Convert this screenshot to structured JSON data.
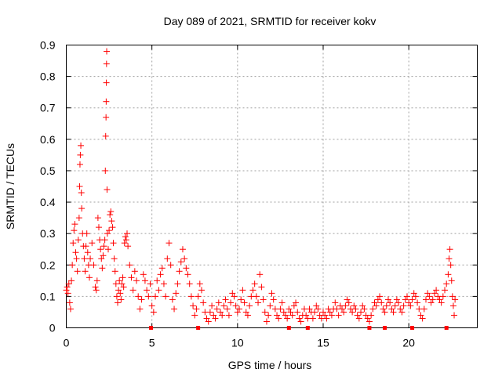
{
  "chart_data": {
    "type": "scatter",
    "title": "Day 089 of 2021, SRMTID for receiver kokv",
    "xlabel": "GPS time / hours",
    "ylabel": "SRMTID / TECUs",
    "xlim": [
      0,
      24
    ],
    "ylim": [
      0,
      0.9
    ],
    "x_ticks": [
      0,
      5,
      10,
      15,
      20
    ],
    "x_tick_labels": [
      "0",
      "5",
      "10",
      "15",
      "20"
    ],
    "y_ticks": [
      0,
      0.1,
      0.2,
      0.3,
      0.4,
      0.5,
      0.6,
      0.7,
      0.8,
      0.9
    ],
    "y_tick_labels": [
      "0",
      "0.1",
      "0.2",
      "0.3",
      "0.4",
      "0.5",
      "0.6",
      "0.7",
      "0.8",
      "0.9"
    ],
    "grid": true,
    "marker": "plus",
    "series_color": "#ff0000",
    "series": [
      {
        "name": "SRMTID",
        "points": [
          [
            0.0,
            0.12
          ],
          [
            0.05,
            0.13
          ],
          [
            0.1,
            0.11
          ],
          [
            0.15,
            0.14
          ],
          [
            0.2,
            0.08
          ],
          [
            0.25,
            0.06
          ],
          [
            0.3,
            0.15
          ],
          [
            0.35,
            0.2
          ],
          [
            0.4,
            0.27
          ],
          [
            0.45,
            0.31
          ],
          [
            0.5,
            0.33
          ],
          [
            0.55,
            0.24
          ],
          [
            0.6,
            0.22
          ],
          [
            0.65,
            0.18
          ],
          [
            0.7,
            0.28
          ],
          [
            0.75,
            0.35
          ],
          [
            0.78,
            0.45
          ],
          [
            0.8,
            0.52
          ],
          [
            0.82,
            0.55
          ],
          [
            0.85,
            0.58
          ],
          [
            0.88,
            0.43
          ],
          [
            0.9,
            0.38
          ],
          [
            0.95,
            0.3
          ],
          [
            1.0,
            0.26
          ],
          [
            1.05,
            0.22
          ],
          [
            1.1,
            0.18
          ],
          [
            1.15,
            0.26
          ],
          [
            1.2,
            0.3
          ],
          [
            1.25,
            0.24
          ],
          [
            1.3,
            0.2
          ],
          [
            1.35,
            0.16
          ],
          [
            1.4,
            0.22
          ],
          [
            1.5,
            0.27
          ],
          [
            1.6,
            0.2
          ],
          [
            1.7,
            0.13
          ],
          [
            1.75,
            0.12
          ],
          [
            1.8,
            0.15
          ],
          [
            1.85,
            0.35
          ],
          [
            1.9,
            0.32
          ],
          [
            1.95,
            0.28
          ],
          [
            2.0,
            0.25
          ],
          [
            2.05,
            0.22
          ],
          [
            2.1,
            0.19
          ],
          [
            2.15,
            0.23
          ],
          [
            2.2,
            0.26
          ],
          [
            2.25,
            0.28
          ],
          [
            2.28,
            0.5
          ],
          [
            2.3,
            0.61
          ],
          [
            2.32,
            0.67
          ],
          [
            2.33,
            0.72
          ],
          [
            2.34,
            0.78
          ],
          [
            2.35,
            0.84
          ],
          [
            2.36,
            0.88
          ],
          [
            2.38,
            0.44
          ],
          [
            2.4,
            0.3
          ],
          [
            2.45,
            0.25
          ],
          [
            2.5,
            0.31
          ],
          [
            2.55,
            0.36
          ],
          [
            2.6,
            0.37
          ],
          [
            2.65,
            0.34
          ],
          [
            2.7,
            0.32
          ],
          [
            2.75,
            0.27
          ],
          [
            2.8,
            0.22
          ],
          [
            2.85,
            0.18
          ],
          [
            2.9,
            0.14
          ],
          [
            2.95,
            0.1
          ],
          [
            3.0,
            0.08
          ],
          [
            3.05,
            0.12
          ],
          [
            3.1,
            0.15
          ],
          [
            3.15,
            0.11
          ],
          [
            3.2,
            0.09
          ],
          [
            3.25,
            0.14
          ],
          [
            3.3,
            0.16
          ],
          [
            3.35,
            0.13
          ],
          [
            3.4,
            0.27
          ],
          [
            3.45,
            0.29
          ],
          [
            3.5,
            0.28
          ],
          [
            3.55,
            0.3
          ],
          [
            3.6,
            0.26
          ],
          [
            3.7,
            0.2
          ],
          [
            3.8,
            0.16
          ],
          [
            3.9,
            0.12
          ],
          [
            4.0,
            0.18
          ],
          [
            4.1,
            0.15
          ],
          [
            4.2,
            0.1
          ],
          [
            4.3,
            0.06
          ],
          [
            4.4,
            0.09
          ],
          [
            4.5,
            0.17
          ],
          [
            4.6,
            0.15
          ],
          [
            4.7,
            0.12
          ],
          [
            4.8,
            0.1
          ],
          [
            4.9,
            0.14
          ],
          [
            5.0,
            0.07
          ],
          [
            5.1,
            0.05
          ],
          [
            5.2,
            0.1
          ],
          [
            5.3,
            0.15
          ],
          [
            5.4,
            0.12
          ],
          [
            5.5,
            0.17
          ],
          [
            5.6,
            0.19
          ],
          [
            5.7,
            0.14
          ],
          [
            5.8,
            0.1
          ],
          [
            5.9,
            0.22
          ],
          [
            6.0,
            0.27
          ],
          [
            6.1,
            0.2
          ],
          [
            6.2,
            0.09
          ],
          [
            6.3,
            0.06
          ],
          [
            6.4,
            0.11
          ],
          [
            6.5,
            0.14
          ],
          [
            6.6,
            0.18
          ],
          [
            6.7,
            0.21
          ],
          [
            6.8,
            0.25
          ],
          [
            6.9,
            0.22
          ],
          [
            7.0,
            0.19
          ],
          [
            7.1,
            0.17
          ],
          [
            7.2,
            0.14
          ],
          [
            7.3,
            0.1
          ],
          [
            7.4,
            0.07
          ],
          [
            7.5,
            0.04
          ],
          [
            7.6,
            0.06
          ],
          [
            7.7,
            0.1
          ],
          [
            7.8,
            0.14
          ],
          [
            7.9,
            0.12
          ],
          [
            8.0,
            0.08
          ],
          [
            8.1,
            0.05
          ],
          [
            8.2,
            0.03
          ],
          [
            8.3,
            0.02
          ],
          [
            8.4,
            0.05
          ],
          [
            8.5,
            0.07
          ],
          [
            8.6,
            0.04
          ],
          [
            8.7,
            0.03
          ],
          [
            8.8,
            0.06
          ],
          [
            8.9,
            0.08
          ],
          [
            9.0,
            0.05
          ],
          [
            9.1,
            0.04
          ],
          [
            9.2,
            0.07
          ],
          [
            9.3,
            0.09
          ],
          [
            9.4,
            0.06
          ],
          [
            9.5,
            0.04
          ],
          [
            9.6,
            0.08
          ],
          [
            9.7,
            0.11
          ],
          [
            9.8,
            0.1
          ],
          [
            9.9,
            0.07
          ],
          [
            10.0,
            0.05
          ],
          [
            10.1,
            0.06
          ],
          [
            10.2,
            0.09
          ],
          [
            10.3,
            0.12
          ],
          [
            10.4,
            0.08
          ],
          [
            10.5,
            0.05
          ],
          [
            10.6,
            0.04
          ],
          [
            10.7,
            0.07
          ],
          [
            10.8,
            0.1
          ],
          [
            10.9,
            0.12
          ],
          [
            11.0,
            0.14
          ],
          [
            11.1,
            0.1
          ],
          [
            11.2,
            0.08
          ],
          [
            11.3,
            0.17
          ],
          [
            11.4,
            0.13
          ],
          [
            11.5,
            0.09
          ],
          [
            11.6,
            0.05
          ],
          [
            11.7,
            0.02
          ],
          [
            11.8,
            0.04
          ],
          [
            11.9,
            0.07
          ],
          [
            12.0,
            0.11
          ],
          [
            12.1,
            0.09
          ],
          [
            12.2,
            0.06
          ],
          [
            12.3,
            0.04
          ],
          [
            12.4,
            0.03
          ],
          [
            12.5,
            0.06
          ],
          [
            12.6,
            0.08
          ],
          [
            12.7,
            0.05
          ],
          [
            12.8,
            0.04
          ],
          [
            12.9,
            0.03
          ],
          [
            13.0,
            0.06
          ],
          [
            13.1,
            0.05
          ],
          [
            13.2,
            0.04
          ],
          [
            13.3,
            0.07
          ],
          [
            13.4,
            0.08
          ],
          [
            13.5,
            0.05
          ],
          [
            13.6,
            0.03
          ],
          [
            13.7,
            0.02
          ],
          [
            13.8,
            0.04
          ],
          [
            13.9,
            0.06
          ],
          [
            14.0,
            0.04
          ],
          [
            14.1,
            0.03
          ],
          [
            14.2,
            0.06
          ],
          [
            14.3,
            0.05
          ],
          [
            14.4,
            0.03
          ],
          [
            14.5,
            0.05
          ],
          [
            14.6,
            0.07
          ],
          [
            14.7,
            0.06
          ],
          [
            14.8,
            0.04
          ],
          [
            14.9,
            0.03
          ],
          [
            15.0,
            0.05
          ],
          [
            15.1,
            0.04
          ],
          [
            15.2,
            0.03
          ],
          [
            15.3,
            0.06
          ],
          [
            15.4,
            0.05
          ],
          [
            15.5,
            0.04
          ],
          [
            15.6,
            0.06
          ],
          [
            15.7,
            0.08
          ],
          [
            15.8,
            0.06
          ],
          [
            15.9,
            0.04
          ],
          [
            16.0,
            0.07
          ],
          [
            16.1,
            0.06
          ],
          [
            16.2,
            0.05
          ],
          [
            16.3,
            0.07
          ],
          [
            16.4,
            0.09
          ],
          [
            16.5,
            0.08
          ],
          [
            16.6,
            0.06
          ],
          [
            16.7,
            0.05
          ],
          [
            16.8,
            0.07
          ],
          [
            16.9,
            0.06
          ],
          [
            17.0,
            0.04
          ],
          [
            17.1,
            0.03
          ],
          [
            17.2,
            0.05
          ],
          [
            17.3,
            0.07
          ],
          [
            17.4,
            0.06
          ],
          [
            17.5,
            0.04
          ],
          [
            17.6,
            0.03
          ],
          [
            17.7,
            0.02
          ],
          [
            17.8,
            0.04
          ],
          [
            17.9,
            0.06
          ],
          [
            18.0,
            0.08
          ],
          [
            18.1,
            0.07
          ],
          [
            18.2,
            0.09
          ],
          [
            18.3,
            0.1
          ],
          [
            18.4,
            0.08
          ],
          [
            18.5,
            0.06
          ],
          [
            18.6,
            0.05
          ],
          [
            18.7,
            0.07
          ],
          [
            18.8,
            0.09
          ],
          [
            18.9,
            0.08
          ],
          [
            19.0,
            0.06
          ],
          [
            19.1,
            0.05
          ],
          [
            19.2,
            0.07
          ],
          [
            19.3,
            0.09
          ],
          [
            19.4,
            0.08
          ],
          [
            19.5,
            0.06
          ],
          [
            19.6,
            0.05
          ],
          [
            19.7,
            0.07
          ],
          [
            19.8,
            0.09
          ],
          [
            19.9,
            0.1
          ],
          [
            20.0,
            0.08
          ],
          [
            20.1,
            0.07
          ],
          [
            20.2,
            0.09
          ],
          [
            20.3,
            0.11
          ],
          [
            20.4,
            0.1
          ],
          [
            20.5,
            0.08
          ],
          [
            20.6,
            0.06
          ],
          [
            20.7,
            0.04
          ],
          [
            20.8,
            0.03
          ],
          [
            20.9,
            0.06
          ],
          [
            21.0,
            0.09
          ],
          [
            21.1,
            0.11
          ],
          [
            21.2,
            0.1
          ],
          [
            21.3,
            0.08
          ],
          [
            21.4,
            0.09
          ],
          [
            21.5,
            0.11
          ],
          [
            21.6,
            0.12
          ],
          [
            21.7,
            0.1
          ],
          [
            21.8,
            0.09
          ],
          [
            21.9,
            0.08
          ],
          [
            22.0,
            0.1
          ],
          [
            22.1,
            0.12
          ],
          [
            22.2,
            0.14
          ],
          [
            22.3,
            0.17
          ],
          [
            22.35,
            0.22
          ],
          [
            22.4,
            0.25
          ],
          [
            22.45,
            0.2
          ],
          [
            22.5,
            0.15
          ],
          [
            22.55,
            0.1
          ],
          [
            22.6,
            0.07
          ],
          [
            22.65,
            0.04
          ],
          [
            22.7,
            0.09
          ]
        ]
      }
    ],
    "axis_markers": {
      "color": "#ff0000",
      "y_value": 0,
      "x": [
        4.95,
        7.7,
        13.0,
        14.1,
        17.7,
        18.6,
        20.2,
        22.2
      ]
    }
  }
}
